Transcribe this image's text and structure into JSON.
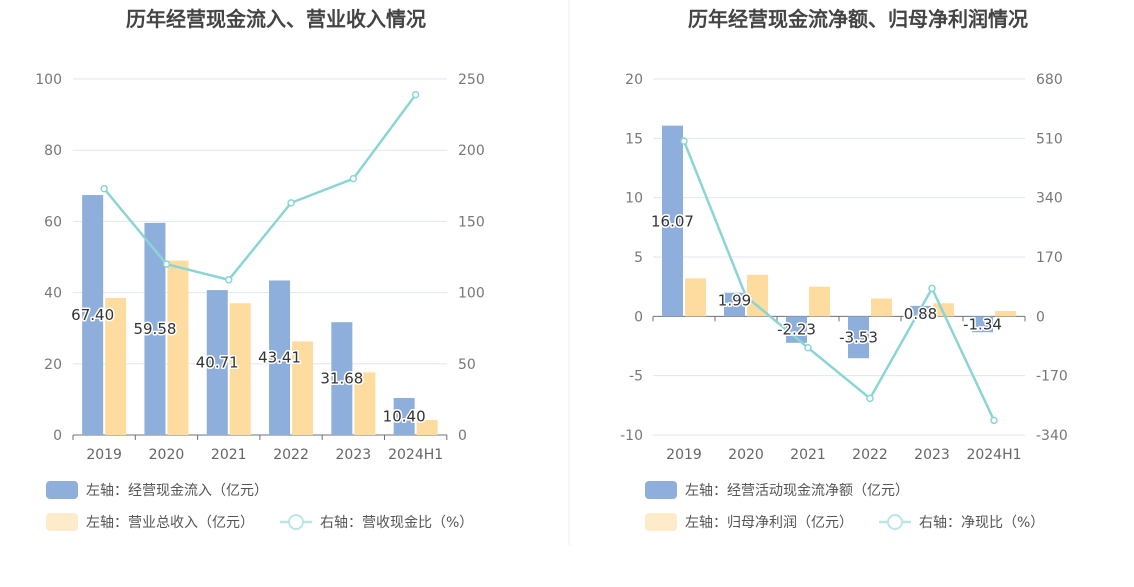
{
  "chart_data": [
    {
      "type": "bar",
      "title": "历年经营现金流入、营业收入情况",
      "categories": [
        "2019",
        "2020",
        "2021",
        "2022",
        "2023",
        "2024H1"
      ],
      "ylim_left": [
        0,
        100
      ],
      "yticks_left": [
        "0",
        "20",
        "40",
        "60",
        "80",
        "100"
      ],
      "ylim_right": [
        0,
        250
      ],
      "yticks_right": [
        "0",
        "50",
        "100",
        "150",
        "200",
        "250"
      ],
      "grid": true,
      "legend_position": "bottom-left",
      "series": [
        {
          "name": "左轴：经营现金流入（亿元）",
          "axis": "left",
          "kind": "bar",
          "color": "#8eaedb",
          "values": [
            67.4,
            59.58,
            40.71,
            43.41,
            31.68,
            10.4
          ],
          "labels": [
            "67.40",
            "59.58",
            "40.71",
            "43.41",
            "31.68",
            "10.40"
          ]
        },
        {
          "name": "左轴：营业总收入（亿元）",
          "axis": "left",
          "kind": "bar",
          "color": "#fedc9f",
          "values": [
            38.5,
            49.0,
            37.0,
            26.3,
            17.6,
            4.2
          ]
        },
        {
          "name": "右轴：营收现金比（%）",
          "axis": "right",
          "kind": "line",
          "color": "#8cd5d5",
          "values": [
            173,
            120,
            109,
            163,
            180,
            239
          ]
        }
      ]
    },
    {
      "type": "bar",
      "title": "历年经营现金流净额、归母净利润情况",
      "categories": [
        "2019",
        "2020",
        "2021",
        "2022",
        "2023",
        "2024H1"
      ],
      "ylim_left": [
        -10,
        20
      ],
      "yticks_left": [
        "-10",
        "-5",
        "0",
        "5",
        "10",
        "15",
        "20"
      ],
      "ylim_right": [
        -340,
        680
      ],
      "yticks_right": [
        "-340",
        "-170",
        "0",
        "170",
        "340",
        "510",
        "680"
      ],
      "grid": true,
      "legend_position": "bottom-left",
      "series": [
        {
          "name": "左轴：经营活动现金流净额（亿元）",
          "axis": "left",
          "kind": "bar",
          "color": "#8eaedb",
          "values": [
            16.07,
            1.99,
            -2.23,
            -3.53,
            0.88,
            -1.34
          ],
          "labels": [
            "16.07",
            "1.99",
            "-2.23",
            "-3.53",
            "0.88",
            "-1.34"
          ]
        },
        {
          "name": "左轴：归母净利润（亿元）",
          "axis": "left",
          "kind": "bar",
          "color": "#fedc9f",
          "values": [
            3.2,
            3.5,
            2.5,
            1.5,
            1.1,
            0.45
          ]
        },
        {
          "name": "右轴：净现比（%）",
          "axis": "right",
          "kind": "line",
          "color": "#8cd5d5",
          "values": [
            502,
            57,
            -90,
            -235,
            80,
            -298
          ]
        }
      ]
    }
  ]
}
